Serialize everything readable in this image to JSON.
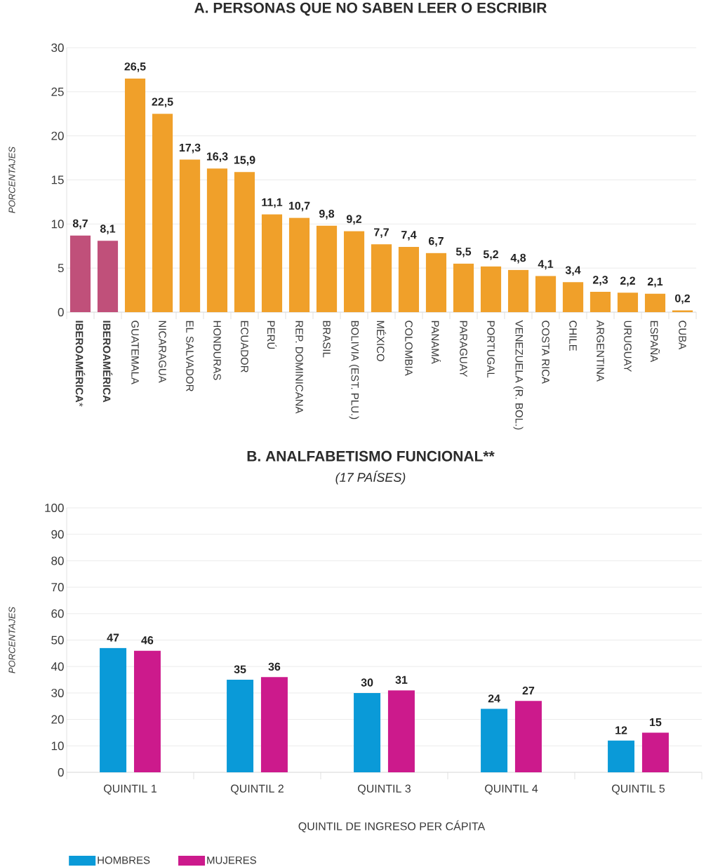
{
  "chart_data": [
    {
      "type": "bar",
      "title": "A. PERSONAS QUE NO SABEN LEER O ESCRIBIR",
      "ylabel": "PORCENTAJES",
      "categories": [
        "**IBEROAMÉRICA***",
        "**IBEROAMÉRICA**",
        "GUATEMALA",
        "NICARAGUA",
        "EL SALVADOR",
        "HONDURAS",
        "ECUADOR",
        "PERÚ",
        "REP. DOMINICANA",
        "BRASIL",
        "BOLIVIA (EST. PLU.)",
        "MÉXICO",
        "COLOMBIA",
        "PANAMÁ",
        "PARAGUAY",
        "PORTUGAL",
        "VENEZUELA (R. BOL.)",
        "COSTA RICA",
        "CHILE",
        "ARGENTINA",
        "URUGUAY",
        "ESPAÑA",
        "CUBA"
      ],
      "values": [
        8.7,
        8.1,
        26.5,
        22.5,
        17.3,
        16.3,
        15.9,
        11.1,
        10.7,
        9.8,
        9.2,
        7.7,
        7.4,
        6.7,
        5.5,
        5.2,
        4.8,
        4.1,
        3.4,
        2.3,
        2.2,
        2.1,
        0.2
      ],
      "value_labels": [
        "8,7",
        "8,1",
        "26,5",
        "22,5",
        "17,3",
        "16,3",
        "15,9",
        "11,1",
        "10,7",
        "9,8",
        "9,2",
        "7,7",
        "7,4",
        "6,7",
        "5,5",
        "5,2",
        "4,8",
        "4,1",
        "3,4",
        "2,3",
        "2,2",
        "2,1",
        "0,2"
      ],
      "colors": [
        "#c0507a",
        "#c0507a",
        "#f0a02a",
        "#f0a02a",
        "#f0a02a",
        "#f0a02a",
        "#f0a02a",
        "#f0a02a",
        "#f0a02a",
        "#f0a02a",
        "#f0a02a",
        "#f0a02a",
        "#f0a02a",
        "#f0a02a",
        "#f0a02a",
        "#f0a02a",
        "#f0a02a",
        "#f0a02a",
        "#f0a02a",
        "#f0a02a",
        "#f0a02a",
        "#f0a02a",
        "#f0a02a"
      ],
      "ylim": [
        0,
        30
      ],
      "yticks": [
        0,
        5,
        10,
        15,
        20,
        25,
        30
      ],
      "grid": "y"
    },
    {
      "type": "bar",
      "title": "B. ANALFABETISMO FUNCIONAL**",
      "subtitle": "(17 PAÍSES)",
      "xlabel": "QUINTIL DE INGRESO PER CÁPITA",
      "ylabel": "PORCENTAJES",
      "categories": [
        "QUINTIL 1",
        "QUINTIL 2",
        "QUINTIL 3",
        "QUINTIL 4",
        "QUINTIL 5"
      ],
      "series": [
        {
          "name": "HOMBRES",
          "color": "#0a9ad8",
          "values": [
            47,
            35,
            30,
            24,
            12
          ]
        },
        {
          "name": "MUJERES",
          "color": "#cc1a8c",
          "values": [
            46,
            36,
            31,
            27,
            15
          ]
        }
      ],
      "ylim": [
        0,
        100
      ],
      "yticks": [
        0,
        10,
        20,
        30,
        40,
        50,
        60,
        70,
        80,
        90,
        100
      ],
      "grid": "y",
      "legend": "bottom left",
      "data_labels": true
    }
  ]
}
